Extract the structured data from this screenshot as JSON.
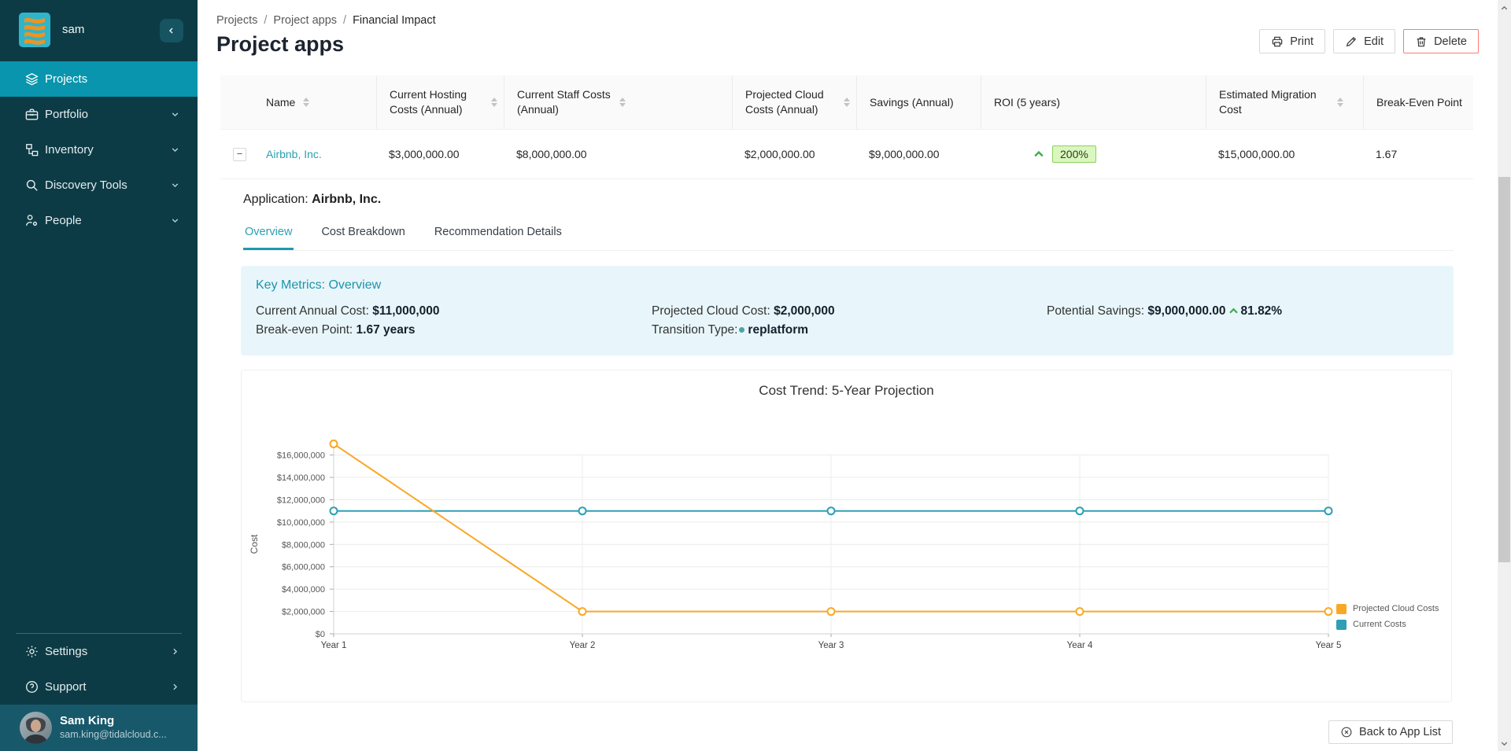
{
  "theme": {
    "sidebar_bg": "#0d3b45",
    "sidebar_active": "#0895ad",
    "profile_bg": "#17596b",
    "accent_teal": "#2ba0b4",
    "metrics_bg": "#e8f6fb",
    "green": "#3fae49",
    "badge_bg": "#d9f7be",
    "badge_border": "#8fd05e",
    "delete_border": "#ff7875",
    "series_orange": "#f9a826",
    "series_blue": "#2e9fb5"
  },
  "sidebar": {
    "workspace": "sam",
    "items": [
      {
        "label": "Projects",
        "icon": "layers-icon",
        "active": true
      },
      {
        "label": "Portfolio",
        "icon": "briefcase-icon",
        "chevron": "down"
      },
      {
        "label": "Inventory",
        "icon": "hierarchy-icon",
        "chevron": "down"
      },
      {
        "label": "Discovery Tools",
        "icon": "search-icon",
        "chevron": "down"
      },
      {
        "label": "People",
        "icon": "user-gear-icon",
        "chevron": "down"
      }
    ],
    "footer_items": [
      {
        "label": "Settings",
        "icon": "gear-icon",
        "chevron": "right"
      },
      {
        "label": "Support",
        "icon": "help-icon",
        "chevron": "right"
      }
    ],
    "user": {
      "name": "Sam King",
      "email": "sam.king@tidalcloud.c..."
    }
  },
  "header": {
    "breadcrumb": [
      "Projects",
      "Project apps",
      "Financial Impact"
    ],
    "title": "Project apps",
    "actions": {
      "print": "Print",
      "edit": "Edit",
      "delete": "Delete"
    }
  },
  "table": {
    "columns": [
      {
        "label": "Name",
        "sortable": true
      },
      {
        "label": "Current Hosting Costs (Annual)",
        "sortable": true
      },
      {
        "label": "Current Staff Costs (Annual)",
        "sortable": true
      },
      {
        "label": "Projected Cloud Costs (Annual)",
        "sortable": true
      },
      {
        "label": "Savings (Annual)",
        "sortable": false
      },
      {
        "label": "ROI (5 years)",
        "sortable": false
      },
      {
        "label": "Estimated Migration Cost",
        "sortable": true
      },
      {
        "label": "Break-Even Point",
        "sortable": false
      }
    ],
    "row": {
      "expand_symbol": "−",
      "name": "Airbnb, Inc.",
      "current_hosting_costs": "$3,000,000.00",
      "current_staff_costs": "$8,000,000.00",
      "projected_cloud_costs": "$2,000,000.00",
      "savings": "$9,000,000.00",
      "roi": "200%",
      "estimated_migration_cost": "$15,000,000.00",
      "break_even_point": "1.67"
    }
  },
  "detail": {
    "application_label": "Application:",
    "application_name": "Airbnb, Inc.",
    "tabs": [
      {
        "label": "Overview",
        "active": true
      },
      {
        "label": "Cost Breakdown",
        "active": false
      },
      {
        "label": "Recommendation Details",
        "active": false
      }
    ]
  },
  "key_metrics": {
    "title": "Key Metrics: Overview",
    "current_annual_cost_label": "Current Annual Cost:",
    "current_annual_cost": "$11,000,000",
    "break_even_label": "Break-even Point:",
    "break_even": "1.67 years",
    "projected_cloud_label": "Projected Cloud Cost:",
    "projected_cloud": "$2,000,000",
    "transition_label": "Transition Type:",
    "transition_type": "replatform",
    "savings_label": "Potential Savings:",
    "savings_value": "$9,000,000.00",
    "savings_pct": "81.82%"
  },
  "chart_data": {
    "type": "line",
    "title": "Cost Trend: 5-Year Projection",
    "categories": [
      "Year 1",
      "Year 2",
      "Year 3",
      "Year 4",
      "Year 5"
    ],
    "series": [
      {
        "name": "Projected Cloud Costs",
        "color": "#f9a826",
        "values": [
          17000000,
          2000000,
          2000000,
          2000000,
          2000000
        ]
      },
      {
        "name": "Current Costs",
        "color": "#2e9fb5",
        "values": [
          11000000,
          11000000,
          11000000,
          11000000,
          11000000
        ]
      }
    ],
    "xlabel": "",
    "ylabel": "Cost",
    "ylim": [
      0,
      17000000
    ],
    "grid": true,
    "legend_position": "right",
    "yticks": [
      {
        "value": 0,
        "label": "$0"
      },
      {
        "value": 2000000,
        "label": "$2,000,000"
      },
      {
        "value": 4000000,
        "label": "$4,000,000"
      },
      {
        "value": 6000000,
        "label": "$6,000,000"
      },
      {
        "value": 8000000,
        "label": "$8,000,000"
      },
      {
        "value": 10000000,
        "label": "$10,000,000"
      },
      {
        "value": 12000000,
        "label": "$12,000,000"
      },
      {
        "value": 14000000,
        "label": "$14,000,000"
      },
      {
        "value": 16000000,
        "label": "$16,000,000"
      }
    ]
  },
  "footer": {
    "back_label": "Back to App List"
  }
}
